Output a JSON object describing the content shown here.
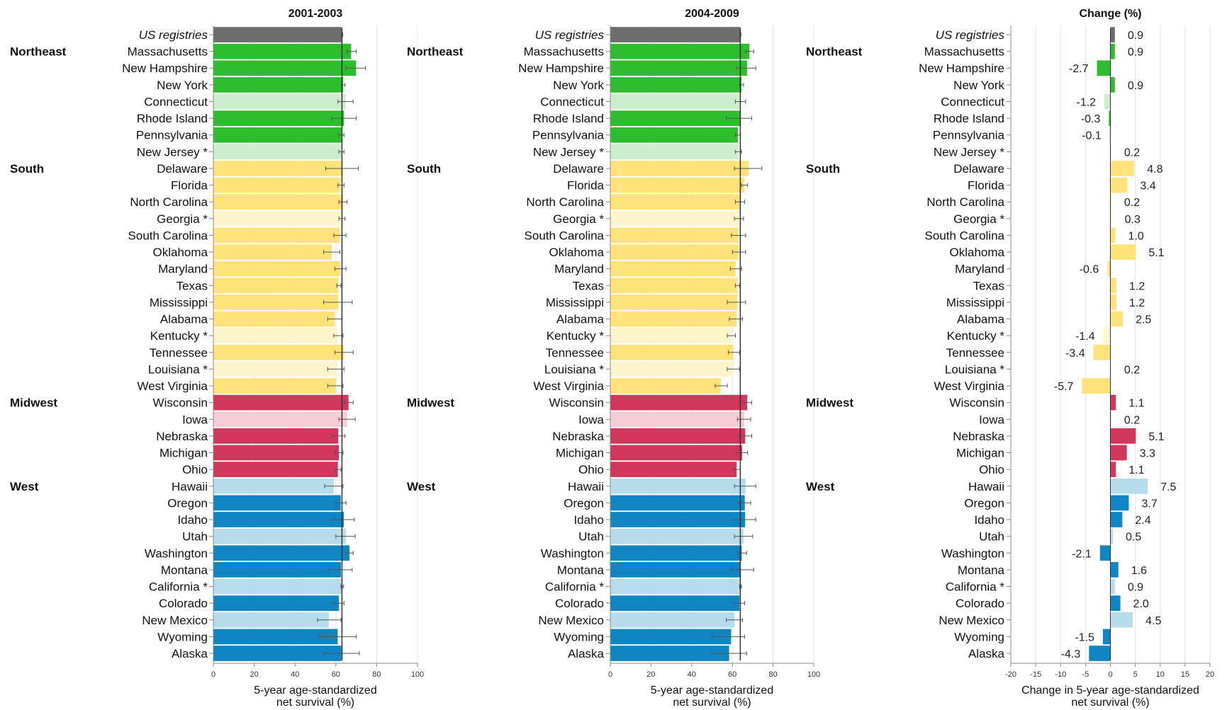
{
  "colors": {
    "us": "#6e6e6e",
    "Northeast": {
      "dark": "#2ebd2e",
      "light": "#cdeecd"
    },
    "South": {
      "dark": "#ffe27a",
      "light": "#fff4cc"
    },
    "Midwest": {
      "dark": "#d2365a",
      "light": "#f4cdd6"
    },
    "West": {
      "dark": "#0f86c3",
      "light": "#b7dcec"
    },
    "grid": "#e4e4e4",
    "axis": "#888888"
  },
  "chart_data": [
    {
      "type": "bar",
      "orientation": "horizontal",
      "title": "2001-2003",
      "xlabel": "5-year age-standardized\nnet survival (%)",
      "xlim": [
        0,
        100
      ],
      "xticks": [
        0,
        20,
        40,
        60,
        80,
        100
      ],
      "reference_value": 63.0,
      "categories": [
        "US registries",
        "Massachusetts",
        "New Hampshire",
        "New York",
        "Connecticut",
        "Rhode Island",
        "Pennsylvania",
        "New Jersey *",
        "Delaware",
        "Florida",
        "North Carolina",
        "Georgia *",
        "South Carolina",
        "Oklahoma",
        "Maryland",
        "Texas",
        "Mississippi",
        "Alabama",
        "Kentucky *",
        "Tennessee",
        "Louisiana *",
        "West Virginia",
        "Wisconsin",
        "Iowa",
        "Nebraska",
        "Michigan",
        "Ohio",
        "Hawaii",
        "Oregon",
        "Idaho",
        "Utah",
        "Washington",
        "Montana",
        "California *",
        "Colorado",
        "New Mexico",
        "Wyoming",
        "Alaska"
      ],
      "values": [
        63.1,
        67.5,
        69.9,
        63.6,
        64.8,
        64.0,
        62.8,
        62.7,
        63.3,
        62.4,
        63.5,
        63.0,
        62.0,
        58.0,
        62.2,
        61.3,
        61.3,
        59.5,
        61.0,
        64.0,
        60.5,
        60.0,
        66.2,
        65.6,
        61.2,
        61.5,
        61.0,
        59.0,
        62.4,
        63.9,
        64.9,
        66.7,
        62.5,
        63.0,
        61.5,
        56.6,
        60.9,
        62.7
      ],
      "ci_low": [
        62.8,
        65.5,
        65.0,
        62.8,
        61.0,
        58.0,
        61.5,
        61.5,
        55.0,
        61.0,
        61.5,
        61.5,
        59.0,
        54.0,
        59.5,
        60.5,
        54.0,
        56.0,
        59.0,
        59.5,
        56.0,
        56.0,
        64.0,
        61.5,
        58.0,
        59.5,
        59.5,
        54.5,
        60.0,
        58.5,
        60.0,
        65.0,
        56.5,
        62.5,
        59.0,
        51.0,
        52.0,
        54.0
      ],
      "ci_high": [
        63.4,
        70.0,
        74.5,
        64.5,
        68.5,
        70.0,
        64.0,
        64.0,
        71.0,
        64.0,
        65.5,
        64.5,
        65.0,
        62.0,
        65.0,
        62.5,
        68.0,
        63.0,
        63.5,
        68.5,
        64.0,
        63.5,
        68.5,
        69.5,
        64.5,
        63.5,
        62.5,
        63.5,
        65.0,
        69.0,
        69.5,
        68.5,
        68.0,
        63.8,
        64.0,
        62.5,
        70.0,
        71.5
      ]
    },
    {
      "type": "bar",
      "orientation": "horizontal",
      "title": "2004-2009",
      "xlabel": "5-year age-standardized\nnet survival (%)",
      "xlim": [
        0,
        100
      ],
      "xticks": [
        0,
        20,
        40,
        60,
        80,
        100
      ],
      "reference_value": 63.9,
      "categories": [
        "US registries",
        "Massachusetts",
        "New Hampshire",
        "New York",
        "Connecticut",
        "Rhode Island",
        "Pennsylvania",
        "New Jersey *",
        "Delaware",
        "Florida",
        "North Carolina",
        "Georgia *",
        "South Carolina",
        "Oklahoma",
        "Maryland",
        "Texas",
        "Mississippi",
        "Alabama",
        "Kentucky *",
        "Tennessee",
        "Louisiana *",
        "West Virginia",
        "Wisconsin",
        "Iowa",
        "Nebraska",
        "Michigan",
        "Ohio",
        "Hawaii",
        "Oregon",
        "Idaho",
        "Utah",
        "Washington",
        "Montana",
        "California *",
        "Colorado",
        "New Mexico",
        "Wyoming",
        "Alaska"
      ],
      "values": [
        64.0,
        68.4,
        67.2,
        64.5,
        63.6,
        63.7,
        62.7,
        62.9,
        68.1,
        65.8,
        63.7,
        63.3,
        63.0,
        63.1,
        61.6,
        62.5,
        62.5,
        62.0,
        59.6,
        60.6,
        60.7,
        54.3,
        67.3,
        65.8,
        66.3,
        64.8,
        62.1,
        66.5,
        66.1,
        66.3,
        65.4,
        64.6,
        64.1,
        63.9,
        63.5,
        61.1,
        59.4,
        58.4
      ],
      "ci_low": [
        63.8,
        66.5,
        62.0,
        63.5,
        61.5,
        57.0,
        61.5,
        61.5,
        61.0,
        64.5,
        61.5,
        61.0,
        59.5,
        60.0,
        59.0,
        61.5,
        57.5,
        58.5,
        57.5,
        58.0,
        57.5,
        51.5,
        65.0,
        62.5,
        63.5,
        62.0,
        60.5,
        61.0,
        62.5,
        61.0,
        61.0,
        62.5,
        59.5,
        63.5,
        61.0,
        57.0,
        50.0,
        50.0
      ],
      "ci_high": [
        64.2,
        70.5,
        71.5,
        65.5,
        66.5,
        69.5,
        64.0,
        64.5,
        74.5,
        67.5,
        66.0,
        65.5,
        66.5,
        66.5,
        64.5,
        63.5,
        66.5,
        65.0,
        61.5,
        63.5,
        63.5,
        57.5,
        69.5,
        69.0,
        69.5,
        67.5,
        64.0,
        71.5,
        69.0,
        71.5,
        70.0,
        67.0,
        70.5,
        64.5,
        66.0,
        65.0,
        66.0,
        67.0
      ]
    },
    {
      "type": "bar",
      "orientation": "horizontal",
      "title": "Change (%)",
      "xlabel": "Change in 5-year age-standardized\nnet survival (%)",
      "xlim": [
        -20,
        20
      ],
      "xticks": [
        -20,
        -15,
        -10,
        -5,
        0,
        5,
        10,
        15,
        20
      ],
      "categories": [
        "US registries",
        "Massachusetts",
        "New Hampshire",
        "New York",
        "Connecticut",
        "Rhode Island",
        "Pennsylvania",
        "New Jersey *",
        "Delaware",
        "Florida",
        "North Carolina",
        "Georgia *",
        "South Carolina",
        "Oklahoma",
        "Maryland",
        "Texas",
        "Mississippi",
        "Alabama",
        "Kentucky *",
        "Tennessee",
        "Louisiana *",
        "West Virginia",
        "Wisconsin",
        "Iowa",
        "Nebraska",
        "Michigan",
        "Ohio",
        "Hawaii",
        "Oregon",
        "Idaho",
        "Utah",
        "Washington",
        "Montana",
        "California *",
        "Colorado",
        "New Mexico",
        "Wyoming",
        "Alaska"
      ],
      "values": [
        0.9,
        0.9,
        -2.7,
        0.9,
        -1.2,
        -0.3,
        -0.1,
        0.2,
        4.8,
        3.4,
        0.2,
        0.3,
        1.0,
        5.1,
        -0.6,
        1.2,
        1.2,
        2.5,
        -1.4,
        -3.4,
        0.2,
        -5.7,
        1.1,
        0.2,
        5.1,
        3.3,
        1.1,
        7.5,
        3.7,
        2.4,
        0.5,
        -2.1,
        1.6,
        0.9,
        2.0,
        4.5,
        -1.5,
        -4.3
      ],
      "value_labels": [
        "0.9",
        "0.9",
        "-2.7",
        "0.9",
        "-1.2",
        "-0.3",
        "-0.1",
        "0.2",
        "4.8",
        "3.4",
        "0.2",
        "0.3",
        "1.0",
        "5.1",
        "-0.6",
        "1.2",
        "1.2",
        "2.5",
        "-1.4",
        "-3.4",
        "0.2",
        "-5.7",
        "1.1",
        "0.2",
        "5.1",
        "3.3",
        "1.1",
        "7.5",
        "3.7",
        "2.4",
        "0.5",
        "-2.1",
        "1.6",
        "0.9",
        "2.0",
        "4.5",
        "-1.5",
        "-4.3"
      ]
    }
  ],
  "rows": {
    "region_of": [
      "US",
      "Northeast",
      "Northeast",
      "Northeast",
      "Northeast",
      "Northeast",
      "Northeast",
      "Northeast",
      "South",
      "South",
      "South",
      "South",
      "South",
      "South",
      "South",
      "South",
      "South",
      "South",
      "South",
      "South",
      "South",
      "South",
      "Midwest",
      "Midwest",
      "Midwest",
      "Midwest",
      "Midwest",
      "West",
      "West",
      "West",
      "West",
      "West",
      "West",
      "West",
      "West",
      "West",
      "West",
      "West"
    ],
    "shade": [
      "us",
      "dark",
      "dark",
      "dark",
      "light",
      "dark",
      "dark",
      "light",
      "dark",
      "dark",
      "dark",
      "light",
      "dark",
      "dark",
      "dark",
      "dark",
      "dark",
      "dark",
      "light",
      "dark",
      "light",
      "dark",
      "dark",
      "light",
      "dark",
      "dark",
      "dark",
      "light",
      "dark",
      "dark",
      "light",
      "dark",
      "dark",
      "light",
      "dark",
      "light",
      "dark",
      "dark"
    ],
    "italic_first": true
  },
  "region_labels": [
    {
      "name": "Northeast",
      "row": 1
    },
    {
      "name": "South",
      "row": 8
    },
    {
      "name": "Midwest",
      "row": 22
    },
    {
      "name": "West",
      "row": 27
    }
  ]
}
